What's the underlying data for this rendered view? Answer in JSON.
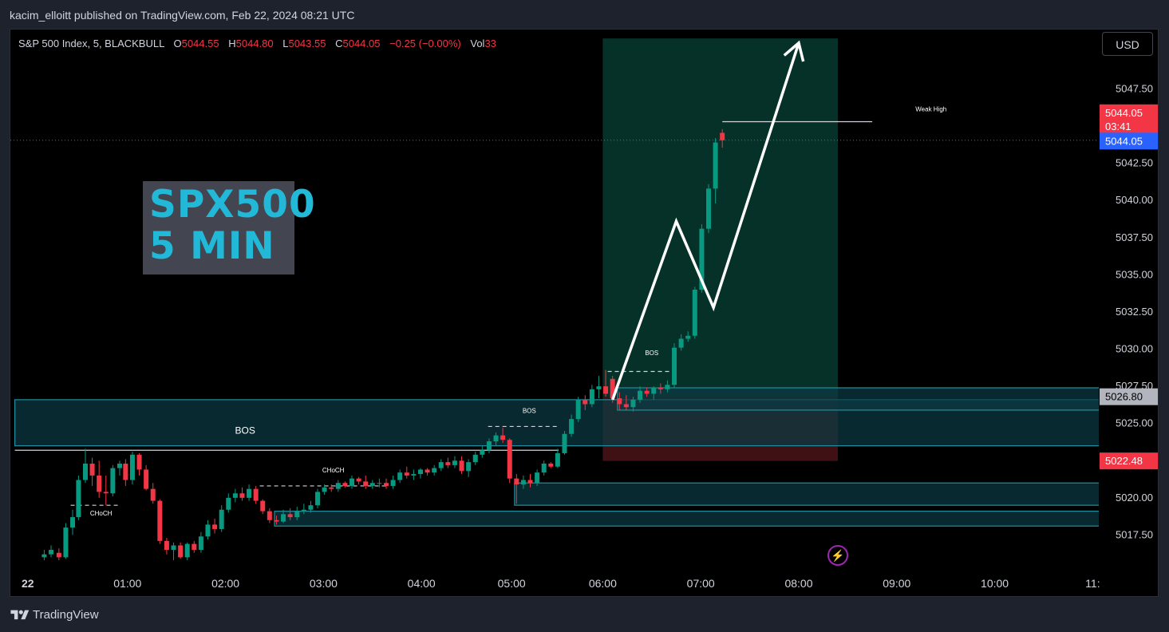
{
  "header": {
    "publisher_text": "kacim_elloitt published on TradingView.com, Feb 22, 2024 08:21 UTC"
  },
  "legend": {
    "symbol": "S&P 500 Index, 5, BLACKBULL",
    "o_label": "O",
    "o_value": "5044.55",
    "h_label": "H",
    "h_value": "5044.80",
    "l_label": "L",
    "l_value": "5043.55",
    "c_label": "C",
    "c_value": "5044.05",
    "change": "−0.25 (−0.00%)",
    "vol_label": "Vol",
    "vol_value": "33"
  },
  "currency_button": "USD",
  "title_box": {
    "line1": "SPX500",
    "line2": "5 MIN"
  },
  "footer": {
    "brand": "TradingView"
  },
  "colors": {
    "up": "#089981",
    "down": "#f23645",
    "zone": "#0c3b43",
    "zone_border": "#1f8fa0",
    "target_zone": "#063a30",
    "stop_zone": "#4a1419",
    "background": "#000000",
    "accent": "#2962ff"
  },
  "icons": {
    "alert": "lightning-bolt-icon",
    "logo": "tradingview-logo-icon"
  },
  "chart_data": {
    "type": "candlestick",
    "timeframe": "5",
    "ylim": [
      5015.0,
      5051.5
    ],
    "y_ticks": [
      5017.5,
      5020.0,
      5022.5,
      5025.0,
      5027.5,
      5030.0,
      5032.5,
      5035.0,
      5037.5,
      5040.0,
      5042.5,
      5045.0,
      5047.5,
      5050.0
    ],
    "x_ticks": [
      {
        "label": "22",
        "t": 0.0
      },
      {
        "label": "01:00",
        "t": 1.0
      },
      {
        "label": "02:00",
        "t": 2.0
      },
      {
        "label": "03:00",
        "t": 3.0
      },
      {
        "label": "04:00",
        "t": 4.0
      },
      {
        "label": "05:00",
        "t": 4.92
      },
      {
        "label": "06:00",
        "t": 5.85
      },
      {
        "label": "07:00",
        "t": 6.85
      },
      {
        "label": "08:00",
        "t": 7.85
      },
      {
        "label": "09:00",
        "t": 8.85
      },
      {
        "label": "10:00",
        "t": 9.85
      },
      {
        "label": "11:",
        "t": 10.85
      }
    ],
    "candles": [
      {
        "t": 0.15,
        "o": 5016.0,
        "h": 5016.5,
        "l": 5015.8,
        "c": 5016.2
      },
      {
        "t": 0.22,
        "o": 5016.2,
        "h": 5016.8,
        "l": 5016.0,
        "c": 5016.5
      },
      {
        "t": 0.3,
        "o": 5016.3,
        "h": 5016.6,
        "l": 5015.8,
        "c": 5016.0
      },
      {
        "t": 0.37,
        "o": 5016.0,
        "h": 5018.3,
        "l": 5015.9,
        "c": 5018.0
      },
      {
        "t": 0.44,
        "o": 5018.0,
        "h": 5019.2,
        "l": 5017.5,
        "c": 5018.7
      },
      {
        "t": 0.5,
        "o": 5018.7,
        "h": 5021.5,
        "l": 5018.5,
        "c": 5021.2
      },
      {
        "t": 0.57,
        "o": 5021.2,
        "h": 5023.3,
        "l": 5021.0,
        "c": 5022.3
      },
      {
        "t": 0.64,
        "o": 5022.3,
        "h": 5022.7,
        "l": 5020.8,
        "c": 5021.5
      },
      {
        "t": 0.71,
        "o": 5021.5,
        "h": 5022.5,
        "l": 5020.0,
        "c": 5020.4
      },
      {
        "t": 0.78,
        "o": 5020.4,
        "h": 5021.5,
        "l": 5019.5,
        "c": 5020.3
      },
      {
        "t": 0.85,
        "o": 5020.3,
        "h": 5022.2,
        "l": 5020.1,
        "c": 5022.0
      },
      {
        "t": 0.92,
        "o": 5022.0,
        "h": 5022.5,
        "l": 5021.5,
        "c": 5022.3
      },
      {
        "t": 0.98,
        "o": 5022.3,
        "h": 5022.6,
        "l": 5020.8,
        "c": 5021.2
      },
      {
        "t": 1.05,
        "o": 5021.2,
        "h": 5023.1,
        "l": 5020.9,
        "c": 5022.9
      },
      {
        "t": 1.12,
        "o": 5022.9,
        "h": 5023.0,
        "l": 5021.5,
        "c": 5021.9
      },
      {
        "t": 1.19,
        "o": 5021.9,
        "h": 5022.2,
        "l": 5020.5,
        "c": 5020.6
      },
      {
        "t": 1.26,
        "o": 5020.6,
        "h": 5021.0,
        "l": 5019.6,
        "c": 5019.8
      },
      {
        "t": 1.33,
        "o": 5019.8,
        "h": 5019.9,
        "l": 5016.9,
        "c": 5017.1
      },
      {
        "t": 1.4,
        "o": 5017.1,
        "h": 5017.3,
        "l": 5016.2,
        "c": 5016.5
      },
      {
        "t": 1.47,
        "o": 5016.5,
        "h": 5017.0,
        "l": 5015.8,
        "c": 5016.8
      },
      {
        "t": 1.54,
        "o": 5016.8,
        "h": 5017.0,
        "l": 5015.9,
        "c": 5016.0
      },
      {
        "t": 1.61,
        "o": 5016.0,
        "h": 5017.0,
        "l": 5015.8,
        "c": 5016.9
      },
      {
        "t": 1.68,
        "o": 5016.9,
        "h": 5017.1,
        "l": 5016.3,
        "c": 5016.5
      },
      {
        "t": 1.75,
        "o": 5016.5,
        "h": 5017.7,
        "l": 5016.3,
        "c": 5017.4
      },
      {
        "t": 1.82,
        "o": 5017.4,
        "h": 5018.5,
        "l": 5017.2,
        "c": 5018.2
      },
      {
        "t": 1.89,
        "o": 5018.2,
        "h": 5018.6,
        "l": 5017.6,
        "c": 5017.9
      },
      {
        "t": 1.96,
        "o": 5017.9,
        "h": 5019.5,
        "l": 5017.7,
        "c": 5019.2
      },
      {
        "t": 2.03,
        "o": 5019.2,
        "h": 5020.3,
        "l": 5019.0,
        "c": 5020.0
      },
      {
        "t": 2.1,
        "o": 5020.0,
        "h": 5020.6,
        "l": 5019.7,
        "c": 5020.3
      },
      {
        "t": 2.17,
        "o": 5020.3,
        "h": 5020.7,
        "l": 5019.8,
        "c": 5020.0
      },
      {
        "t": 2.24,
        "o": 5020.0,
        "h": 5020.9,
        "l": 5019.8,
        "c": 5020.6
      },
      {
        "t": 2.31,
        "o": 5020.6,
        "h": 5020.8,
        "l": 5019.6,
        "c": 5019.8
      },
      {
        "t": 2.38,
        "o": 5019.8,
        "h": 5019.9,
        "l": 5018.9,
        "c": 5019.1
      },
      {
        "t": 2.45,
        "o": 5019.1,
        "h": 5019.3,
        "l": 5018.3,
        "c": 5018.5
      },
      {
        "t": 2.52,
        "o": 5018.5,
        "h": 5018.8,
        "l": 5018.2,
        "c": 5018.4
      },
      {
        "t": 2.59,
        "o": 5018.4,
        "h": 5019.2,
        "l": 5018.3,
        "c": 5018.9
      },
      {
        "t": 2.66,
        "o": 5018.9,
        "h": 5019.3,
        "l": 5018.5,
        "c": 5018.7
      },
      {
        "t": 2.73,
        "o": 5018.7,
        "h": 5019.4,
        "l": 5018.5,
        "c": 5019.1
      },
      {
        "t": 2.8,
        "o": 5019.1,
        "h": 5019.6,
        "l": 5018.9,
        "c": 5019.2
      },
      {
        "t": 2.87,
        "o": 5019.2,
        "h": 5019.8,
        "l": 5019.0,
        "c": 5019.5
      },
      {
        "t": 2.94,
        "o": 5019.5,
        "h": 5020.6,
        "l": 5019.3,
        "c": 5020.4
      },
      {
        "t": 3.01,
        "o": 5020.4,
        "h": 5020.9,
        "l": 5020.2,
        "c": 5020.7
      },
      {
        "t": 3.08,
        "o": 5020.7,
        "h": 5020.9,
        "l": 5020.4,
        "c": 5020.6
      },
      {
        "t": 3.15,
        "o": 5020.6,
        "h": 5021.2,
        "l": 5020.4,
        "c": 5021.0
      },
      {
        "t": 3.22,
        "o": 5021.0,
        "h": 5021.1,
        "l": 5020.7,
        "c": 5020.8
      },
      {
        "t": 3.29,
        "o": 5020.8,
        "h": 5021.5,
        "l": 5020.6,
        "c": 5021.3
      },
      {
        "t": 3.36,
        "o": 5021.3,
        "h": 5021.4,
        "l": 5020.9,
        "c": 5021.1
      },
      {
        "t": 3.43,
        "o": 5021.1,
        "h": 5021.5,
        "l": 5020.6,
        "c": 5020.8
      },
      {
        "t": 3.5,
        "o": 5020.8,
        "h": 5021.2,
        "l": 5020.6,
        "c": 5021.0
      },
      {
        "t": 3.57,
        "o": 5021.0,
        "h": 5021.3,
        "l": 5020.7,
        "c": 5021.0
      },
      {
        "t": 3.64,
        "o": 5021.0,
        "h": 5021.3,
        "l": 5020.6,
        "c": 5020.8
      },
      {
        "t": 3.71,
        "o": 5020.8,
        "h": 5021.5,
        "l": 5020.6,
        "c": 5021.2
      },
      {
        "t": 3.78,
        "o": 5021.2,
        "h": 5021.9,
        "l": 5021.0,
        "c": 5021.7
      },
      {
        "t": 3.85,
        "o": 5021.7,
        "h": 5022.1,
        "l": 5021.3,
        "c": 5021.5
      },
      {
        "t": 3.92,
        "o": 5021.5,
        "h": 5021.9,
        "l": 5021.2,
        "c": 5021.6
      },
      {
        "t": 3.99,
        "o": 5021.6,
        "h": 5022.0,
        "l": 5021.3,
        "c": 5021.9
      },
      {
        "t": 4.06,
        "o": 5021.9,
        "h": 5022.0,
        "l": 5021.5,
        "c": 5021.7
      },
      {
        "t": 4.13,
        "o": 5021.7,
        "h": 5022.2,
        "l": 5021.5,
        "c": 5022.0
      },
      {
        "t": 4.2,
        "o": 5022.0,
        "h": 5022.6,
        "l": 5021.8,
        "c": 5022.4
      },
      {
        "t": 4.27,
        "o": 5022.4,
        "h": 5022.7,
        "l": 5022.0,
        "c": 5022.2
      },
      {
        "t": 4.34,
        "o": 5022.2,
        "h": 5022.8,
        "l": 5022.0,
        "c": 5022.5
      },
      {
        "t": 4.41,
        "o": 5022.5,
        "h": 5022.8,
        "l": 5021.6,
        "c": 5021.8
      },
      {
        "t": 4.48,
        "o": 5021.8,
        "h": 5022.6,
        "l": 5021.4,
        "c": 5022.4
      },
      {
        "t": 4.55,
        "o": 5022.4,
        "h": 5023.1,
        "l": 5022.2,
        "c": 5022.9
      },
      {
        "t": 4.62,
        "o": 5022.9,
        "h": 5023.5,
        "l": 5022.7,
        "c": 5023.2
      },
      {
        "t": 4.69,
        "o": 5023.2,
        "h": 5024.0,
        "l": 5023.0,
        "c": 5023.8
      },
      {
        "t": 4.76,
        "o": 5023.8,
        "h": 5024.4,
        "l": 5023.5,
        "c": 5024.2
      },
      {
        "t": 4.83,
        "o": 5024.2,
        "h": 5024.7,
        "l": 5023.7,
        "c": 5023.9
      },
      {
        "t": 4.9,
        "o": 5023.9,
        "h": 5024.0,
        "l": 5021.0,
        "c": 5021.3
      },
      {
        "t": 4.97,
        "o": 5021.3,
        "h": 5021.6,
        "l": 5019.6,
        "c": 5020.9
      },
      {
        "t": 5.04,
        "o": 5020.9,
        "h": 5021.5,
        "l": 5020.6,
        "c": 5021.2
      },
      {
        "t": 5.11,
        "o": 5021.2,
        "h": 5021.6,
        "l": 5020.7,
        "c": 5021.0
      },
      {
        "t": 5.18,
        "o": 5021.0,
        "h": 5021.9,
        "l": 5020.8,
        "c": 5021.7
      },
      {
        "t": 5.25,
        "o": 5021.7,
        "h": 5022.5,
        "l": 5021.5,
        "c": 5022.3
      },
      {
        "t": 5.32,
        "o": 5022.3,
        "h": 5022.4,
        "l": 5022.0,
        "c": 5022.1
      },
      {
        "t": 5.39,
        "o": 5022.1,
        "h": 5023.3,
        "l": 5022.0,
        "c": 5023.0
      },
      {
        "t": 5.46,
        "o": 5023.0,
        "h": 5024.5,
        "l": 5022.9,
        "c": 5024.3
      },
      {
        "t": 5.53,
        "o": 5024.3,
        "h": 5025.6,
        "l": 5024.1,
        "c": 5025.3
      },
      {
        "t": 5.6,
        "o": 5025.3,
        "h": 5026.8,
        "l": 5025.1,
        "c": 5026.6
      },
      {
        "t": 5.67,
        "o": 5026.6,
        "h": 5026.9,
        "l": 5025.9,
        "c": 5026.3
      },
      {
        "t": 5.74,
        "o": 5026.3,
        "h": 5027.6,
        "l": 5026.1,
        "c": 5027.3
      },
      {
        "t": 5.81,
        "o": 5027.3,
        "h": 5028.2,
        "l": 5026.7,
        "c": 5027.5
      },
      {
        "t": 5.88,
        "o": 5027.5,
        "h": 5028.6,
        "l": 5026.8,
        "c": 5027.0
      },
      {
        "t": 5.95,
        "o": 5028.0,
        "h": 5028.2,
        "l": 5026.4,
        "c": 5026.7
      },
      {
        "t": 6.02,
        "o": 5026.7,
        "h": 5027.1,
        "l": 5025.9,
        "c": 5026.3
      },
      {
        "t": 6.09,
        "o": 5026.3,
        "h": 5026.9,
        "l": 5025.9,
        "c": 5026.1
      },
      {
        "t": 6.16,
        "o": 5026.1,
        "h": 5026.8,
        "l": 5025.8,
        "c": 5026.6
      },
      {
        "t": 6.23,
        "o": 5026.6,
        "h": 5027.5,
        "l": 5026.4,
        "c": 5027.2
      },
      {
        "t": 6.3,
        "o": 5027.2,
        "h": 5027.4,
        "l": 5026.8,
        "c": 5027.0
      },
      {
        "t": 6.37,
        "o": 5027.0,
        "h": 5027.5,
        "l": 5026.6,
        "c": 5027.4
      },
      {
        "t": 6.44,
        "o": 5027.4,
        "h": 5027.7,
        "l": 5027.0,
        "c": 5027.3
      },
      {
        "t": 6.51,
        "o": 5027.3,
        "h": 5027.9,
        "l": 5027.1,
        "c": 5027.6
      },
      {
        "t": 6.58,
        "o": 5027.6,
        "h": 5030.4,
        "l": 5027.4,
        "c": 5030.1
      },
      {
        "t": 6.65,
        "o": 5030.1,
        "h": 5031.0,
        "l": 5029.9,
        "c": 5030.7
      },
      {
        "t": 6.72,
        "o": 5030.7,
        "h": 5031.2,
        "l": 5030.5,
        "c": 5030.9
      },
      {
        "t": 6.79,
        "o": 5030.9,
        "h": 5034.2,
        "l": 5030.7,
        "c": 5034.0
      },
      {
        "t": 6.86,
        "o": 5034.0,
        "h": 5038.4,
        "l": 5033.8,
        "c": 5038.1
      },
      {
        "t": 6.93,
        "o": 5038.1,
        "h": 5041.1,
        "l": 5037.8,
        "c": 5040.8
      },
      {
        "t": 7.0,
        "o": 5040.8,
        "h": 5044.2,
        "l": 5039.8,
        "c": 5043.9
      },
      {
        "t": 7.07,
        "o": 5044.55,
        "h": 5044.8,
        "l": 5043.55,
        "c": 5044.05
      }
    ],
    "price_labels": {
      "last_price": "5044.05",
      "countdown": "03:41",
      "bid_price": "5044.05",
      "zone_price": "5026.80",
      "stop_price": "5022.48"
    },
    "annotations": [
      {
        "text": "BOS",
        "t": 2.2,
        "y": 5024.3
      },
      {
        "text": "BOS",
        "t": 5.1,
        "y": 5025.7
      },
      {
        "text": "BOS",
        "t": 6.35,
        "y": 5029.6
      },
      {
        "text": "CHoCH",
        "t": 0.73,
        "y": 5018.8
      },
      {
        "text": "CHoCH",
        "t": 3.1,
        "y": 5021.7
      },
      {
        "text": "Weak High",
        "t": 9.2,
        "y": 5046.0
      }
    ],
    "levels": [
      {
        "kind": "dashed",
        "t1": 0.42,
        "t2": 0.93,
        "y": 5019.5
      },
      {
        "kind": "dashed",
        "t1": 2.35,
        "t2": 3.65,
        "y": 5020.8
      },
      {
        "kind": "dashed",
        "t1": 4.68,
        "t2": 5.4,
        "y": 5024.8
      },
      {
        "kind": "dashed",
        "t1": 5.9,
        "t2": 6.62,
        "y": 5028.5
      },
      {
        "kind": "solid",
        "t1": -0.15,
        "t2": 5.4,
        "y": 5023.2
      },
      {
        "kind": "solid",
        "t1": 7.07,
        "t2": 8.6,
        "y": 5045.3
      }
    ],
    "zones": [
      {
        "role": "demand",
        "t1": -0.15,
        "t2": 11.2,
        "y1": 5023.5,
        "y2": 5026.6,
        "label": "BOS"
      },
      {
        "role": "demand",
        "t1": 4.95,
        "t2": 11.2,
        "y1": 5019.5,
        "y2": 5021.0
      },
      {
        "role": "demand",
        "t1": 2.5,
        "t2": 11.2,
        "y1": 5018.1,
        "y2": 5019.1
      },
      {
        "role": "demand",
        "t1": 6.0,
        "t2": 11.2,
        "y1": 5025.9,
        "y2": 5027.4
      }
    ],
    "position": {
      "t1": 5.85,
      "t2": 8.25,
      "entry": 5026.8,
      "target": 5050.9,
      "stop": 5022.48
    },
    "projection": [
      {
        "t": 5.95,
        "y": 5026.6
      },
      {
        "t": 6.6,
        "y": 5038.6
      },
      {
        "t": 6.98,
        "y": 5032.8
      },
      {
        "t": 7.85,
        "y": 5050.6
      }
    ]
  }
}
